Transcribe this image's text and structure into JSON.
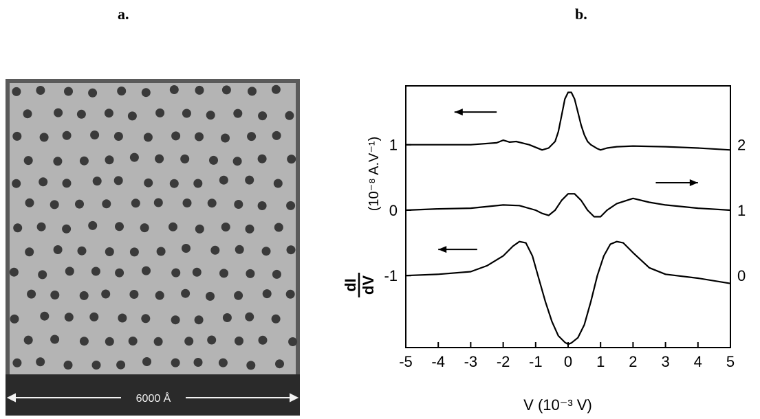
{
  "panels": {
    "a": {
      "label": "a.",
      "scale_bar_text": "6000 Å"
    },
    "b": {
      "label": "b."
    }
  },
  "chart_data": {
    "type": "line",
    "title": "",
    "xlabel": "V (10⁻³ V)",
    "ylabel_fraction": {
      "numerator": "dI",
      "denominator": "dV"
    },
    "ylabel_units": "(10⁻⁸ A.V⁻¹)",
    "xlim": [
      -5,
      5
    ],
    "x_ticks": [
      "-5",
      "-4",
      "-3",
      "-2",
      "-1",
      "0",
      "1",
      "2",
      "3",
      "4",
      "5"
    ],
    "ylim": [
      -2.1,
      1.9
    ],
    "y_ticks_left": [
      "1",
      "0",
      "-1"
    ],
    "y_ticks_left_values": [
      1,
      0,
      -1
    ],
    "curve_labels_right": [
      "2",
      "1",
      "0"
    ],
    "grid": false,
    "series": [
      {
        "name": "2",
        "arrow": "left",
        "x": [
          -5,
          -4,
          -3,
          -2.2,
          -2,
          -1.8,
          -1.6,
          -1.2,
          -0.8,
          -0.6,
          -0.4,
          -0.3,
          -0.2,
          -0.1,
          0,
          0.1,
          0.2,
          0.3,
          0.4,
          0.5,
          0.6,
          0.7,
          0.8,
          0.9,
          1,
          1.2,
          1.5,
          2,
          3,
          4,
          5
        ],
        "y": [
          1.0,
          1.0,
          1.0,
          1.03,
          1.07,
          1.04,
          1.05,
          1.0,
          0.92,
          0.95,
          1.05,
          1.2,
          1.45,
          1.7,
          1.8,
          1.8,
          1.7,
          1.5,
          1.3,
          1.15,
          1.05,
          1.0,
          0.97,
          0.94,
          0.92,
          0.95,
          0.97,
          0.98,
          0.97,
          0.95,
          0.92
        ]
      },
      {
        "name": "1",
        "arrow": "right",
        "x": [
          -5,
          -4,
          -3,
          -2,
          -1.5,
          -1,
          -0.8,
          -0.6,
          -0.4,
          -0.2,
          0,
          0.2,
          0.4,
          0.6,
          0.8,
          1,
          1.2,
          1.5,
          2,
          2.5,
          3,
          4,
          5
        ],
        "y": [
          0.0,
          0.02,
          0.03,
          0.08,
          0.07,
          0.0,
          -0.05,
          -0.08,
          0.0,
          0.15,
          0.25,
          0.25,
          0.15,
          0.0,
          -0.1,
          -0.1,
          0.0,
          0.1,
          0.18,
          0.12,
          0.08,
          0.03,
          0.0
        ]
      },
      {
        "name": "0",
        "arrow": "left",
        "x": [
          -5,
          -4,
          -3,
          -2.5,
          -2,
          -1.7,
          -1.5,
          -1.3,
          -1.1,
          -0.9,
          -0.7,
          -0.5,
          -0.3,
          -0.1,
          0,
          0.1,
          0.3,
          0.5,
          0.7,
          0.9,
          1.1,
          1.3,
          1.5,
          1.7,
          2,
          2.5,
          3,
          4,
          5
        ],
        "y": [
          -1.0,
          -0.98,
          -0.94,
          -0.85,
          -0.7,
          -0.55,
          -0.48,
          -0.5,
          -0.7,
          -1.05,
          -1.4,
          -1.7,
          -1.92,
          -2.02,
          -2.05,
          -2.03,
          -1.95,
          -1.75,
          -1.4,
          -1.0,
          -0.7,
          -0.52,
          -0.48,
          -0.5,
          -0.65,
          -0.88,
          -0.98,
          -1.04,
          -1.12
        ]
      }
    ]
  }
}
